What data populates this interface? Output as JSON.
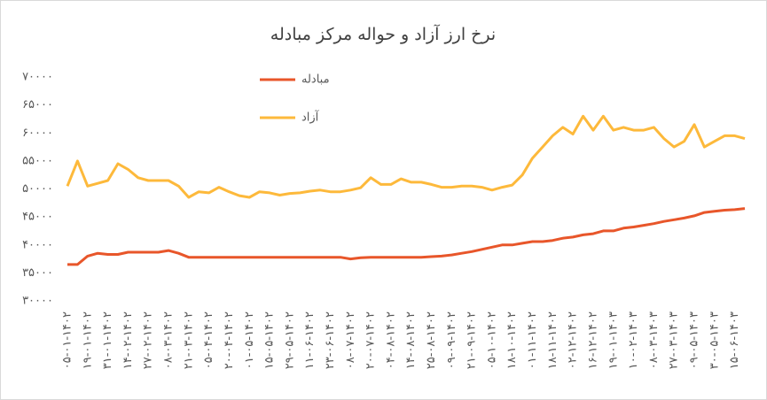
{
  "chart_data": {
    "type": "line",
    "title": "نرخ ارز آزاد و حواله مرکز مبادله",
    "categories": [
      "۰۵-۰۱-۱۴۰۲",
      null,
      "۱۹-۰۱-۱۴۰۲",
      null,
      "۳۱-۰۱-۱۴۰۲",
      null,
      "۱۴-۰۲-۱۴۰۲",
      null,
      "۲۷-۰۲-۱۴۰۲",
      null,
      "۰۸-۰۳-۱۴۰۲",
      null,
      "۲۱-۰۳-۱۴۰۲",
      null,
      "۰۵-۰۴-۱۴۰۲",
      null,
      "۲۰-۰۴-۱۴۰۲",
      null,
      "۰۱-۰۵-۱۴۰۲",
      null,
      "۱۵-۰۵-۱۴۰۲",
      null,
      "۲۹-۰۵-۱۴۰۲",
      null,
      "۱۱-۰۶-۱۴۰۲",
      null,
      "۲۳-۰۶-۱۴۰۲",
      null,
      "۰۸-۰۷-۱۴۰۲",
      null,
      "۲۰-۰۷-۱۴۰۲",
      null,
      "۰۴-۰۸-۱۴۰۲",
      null,
      "۱۴-۰۸-۱۴۰۲",
      null,
      "۲۵-۰۸-۱۴۰۲",
      null,
      "۰۹-۰۹-۱۴۰۲",
      null,
      "۲۱-۰۹-۱۴۰۲",
      null,
      "۰۵-۱۰-۱۴۰۲",
      null,
      "۱۸-۱۰-۱۴۰۲",
      null,
      "۰۱-۱۱-۱۴۰۲",
      null,
      "۱۸-۱۱-۱۴۰۲",
      null,
      "۰۲-۱۲-۱۴۰۲",
      null,
      "۱۶-۱۲-۱۴۰۲",
      null,
      "۱۹-۰۱-۱۴۰۳",
      null,
      "۱۰-۰۲-۱۴۰۳",
      null,
      "۰۸-۰۳-۱۴۰۳",
      null,
      "۲۷-۰۳-۱۴۰۳",
      null,
      "۰۹-۰۵-۱۴۰۳",
      null,
      "۳۰-۰۵-۱۴۰۳",
      null,
      "۱۵-۰۶-۱۴۰۳",
      null
    ],
    "series": [
      {
        "name": "مبادله",
        "color": "#e8562a",
        "values": [
          36500,
          36500,
          38000,
          38500,
          38300,
          38300,
          38700,
          38700,
          38700,
          38700,
          39000,
          38500,
          37800,
          37800,
          37800,
          37800,
          37800,
          37800,
          37800,
          37800,
          37800,
          37800,
          37800,
          37800,
          37800,
          37800,
          37800,
          37800,
          37500,
          37700,
          37800,
          37800,
          37800,
          37800,
          37800,
          37800,
          37900,
          38000,
          38200,
          38500,
          38800,
          39200,
          39600,
          40000,
          40000,
          40300,
          40600,
          40600,
          40800,
          41200,
          41400,
          41800,
          42000,
          42500,
          42500,
          43000,
          43200,
          43500,
          43800,
          44200,
          44500,
          44800,
          45200,
          45800,
          46000,
          46200,
          46300,
          46500
        ]
      },
      {
        "name": "آزاد",
        "color": "#fdb93b",
        "values": [
          50500,
          55000,
          50500,
          51000,
          51500,
          54500,
          53500,
          52000,
          51500,
          51500,
          51500,
          50500,
          48500,
          49500,
          49300,
          50300,
          49500,
          48800,
          48500,
          49500,
          49300,
          48900,
          49200,
          49300,
          49600,
          49800,
          49500,
          49500,
          49800,
          50200,
          52000,
          50800,
          50800,
          51800,
          51200,
          51200,
          50800,
          50300,
          50300,
          50500,
          50500,
          50300,
          49800,
          50300,
          50700,
          52500,
          55500,
          57500,
          59500,
          61000,
          59800,
          63000,
          60500,
          63000,
          60500,
          61000,
          60500,
          60500,
          61000,
          59000,
          57500,
          58500,
          61500,
          57500,
          58500,
          59500,
          59500,
          59000
        ]
      }
    ],
    "ylim": [
      30000,
      70000
    ],
    "yticks": [
      {
        "value": 30000,
        "label": "۳۰۰۰۰"
      },
      {
        "value": 35000,
        "label": "۳۵۰۰۰"
      },
      {
        "value": 40000,
        "label": "۴۰۰۰۰"
      },
      {
        "value": 45000,
        "label": "۴۵۰۰۰"
      },
      {
        "value": 50000,
        "label": "۵۰۰۰۰"
      },
      {
        "value": 55000,
        "label": "۵۵۰۰۰"
      },
      {
        "value": 60000,
        "label": "۶۰۰۰۰"
      },
      {
        "value": 65000,
        "label": "۶۵۰۰۰"
      },
      {
        "value": 70000,
        "label": "۷۰۰۰۰"
      }
    ],
    "grid": false,
    "legend": "top-left"
  }
}
